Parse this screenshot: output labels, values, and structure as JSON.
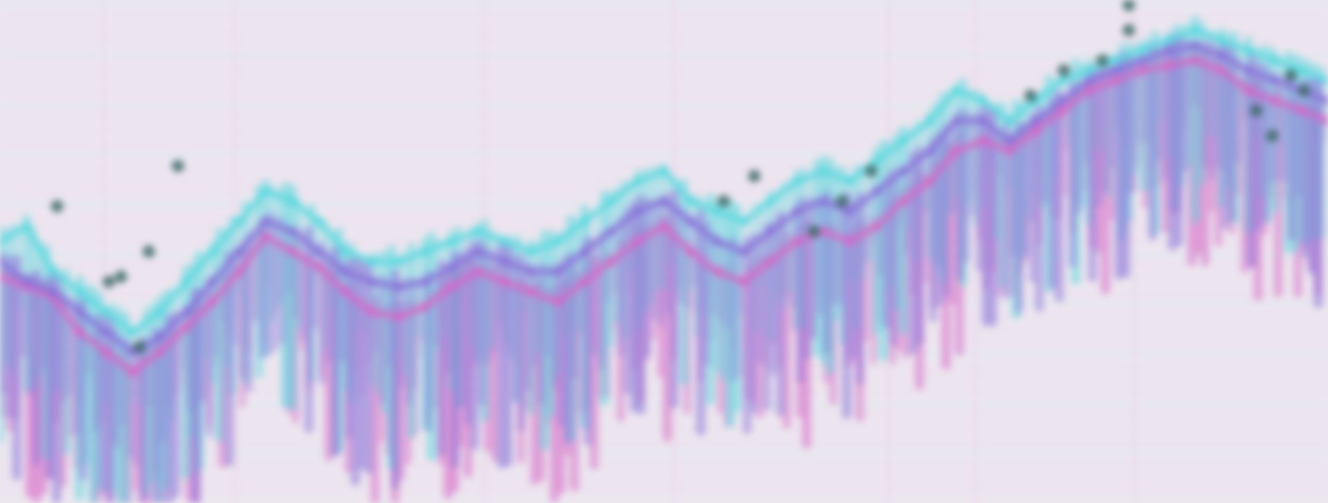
{
  "chart_data": {
    "type": "line",
    "title": "",
    "xlabel": "",
    "ylabel": "",
    "grid": true,
    "legend": "none",
    "colors": {
      "background": "#ece6ef",
      "magenta": "#d768c6",
      "cyan": "#59d9df",
      "violet": "#8a72d8",
      "marker": "#3f6b6a"
    },
    "x": [
      0,
      2,
      4,
      6,
      8,
      10,
      12,
      14,
      16,
      18,
      20,
      22,
      24,
      26,
      28,
      30,
      32,
      34,
      36,
      38,
      40,
      42,
      44,
      46,
      48,
      50,
      52,
      54,
      56,
      58,
      60,
      62,
      64,
      66,
      68,
      70,
      72,
      74,
      76,
      78,
      80,
      82,
      84,
      86,
      88,
      90,
      92,
      94,
      96,
      98,
      100
    ],
    "xlim": [
      0,
      100
    ],
    "ylim": [
      0,
      100
    ],
    "series": [
      {
        "color": "#d768c6",
        "values": [
          45,
          43,
          41,
          34,
          30,
          26,
          30,
          35,
          40,
          46,
          53,
          50,
          47,
          42,
          38,
          37,
          39,
          43,
          46,
          44,
          42,
          40,
          44,
          48,
          52,
          55,
          50,
          46,
          44,
          48,
          52,
          54,
          52,
          55,
          60,
          64,
          70,
          72,
          70,
          74,
          78,
          82,
          84,
          86,
          87,
          88,
          86,
          82,
          80,
          78,
          76
        ]
      },
      {
        "color": "#59d9df",
        "values": [
          52,
          55,
          46,
          42,
          38,
          34,
          38,
          44,
          50,
          56,
          62,
          60,
          56,
          50,
          48,
          48,
          50,
          52,
          54,
          52,
          50,
          52,
          56,
          60,
          64,
          66,
          60,
          58,
          56,
          60,
          64,
          66,
          64,
          68,
          72,
          76,
          82,
          80,
          76,
          80,
          84,
          86,
          88,
          90,
          92,
          94,
          92,
          90,
          88,
          86,
          84
        ]
      },
      {
        "color": "#8a72d8",
        "values": [
          48,
          44,
          42,
          38,
          34,
          30,
          33,
          38,
          44,
          50,
          56,
          54,
          50,
          46,
          44,
          43,
          44,
          47,
          50,
          48,
          46,
          46,
          50,
          54,
          58,
          60,
          56,
          52,
          50,
          54,
          58,
          60,
          58,
          62,
          66,
          70,
          76,
          76,
          72,
          76,
          80,
          84,
          86,
          88,
          90,
          91,
          89,
          86,
          84,
          82,
          80
        ]
      }
    ],
    "markers": [
      {
        "x": 4.3,
        "y": 59
      },
      {
        "x": 8.2,
        "y": 44
      },
      {
        "x": 9.1,
        "y": 45
      },
      {
        "x": 11.2,
        "y": 50
      },
      {
        "x": 13.4,
        "y": 67
      },
      {
        "x": 10.5,
        "y": 31
      },
      {
        "x": 54.5,
        "y": 60
      },
      {
        "x": 56.8,
        "y": 65
      },
      {
        "x": 63.4,
        "y": 60
      },
      {
        "x": 61.3,
        "y": 54
      },
      {
        "x": 65.6,
        "y": 66
      },
      {
        "x": 77.6,
        "y": 81
      },
      {
        "x": 80.1,
        "y": 86
      },
      {
        "x": 83,
        "y": 88
      },
      {
        "x": 85,
        "y": 94
      },
      {
        "x": 85,
        "y": 99
      },
      {
        "x": 94.6,
        "y": 78
      },
      {
        "x": 95.8,
        "y": 73
      },
      {
        "x": 97.2,
        "y": 85
      },
      {
        "x": 98.2,
        "y": 82
      }
    ]
  }
}
